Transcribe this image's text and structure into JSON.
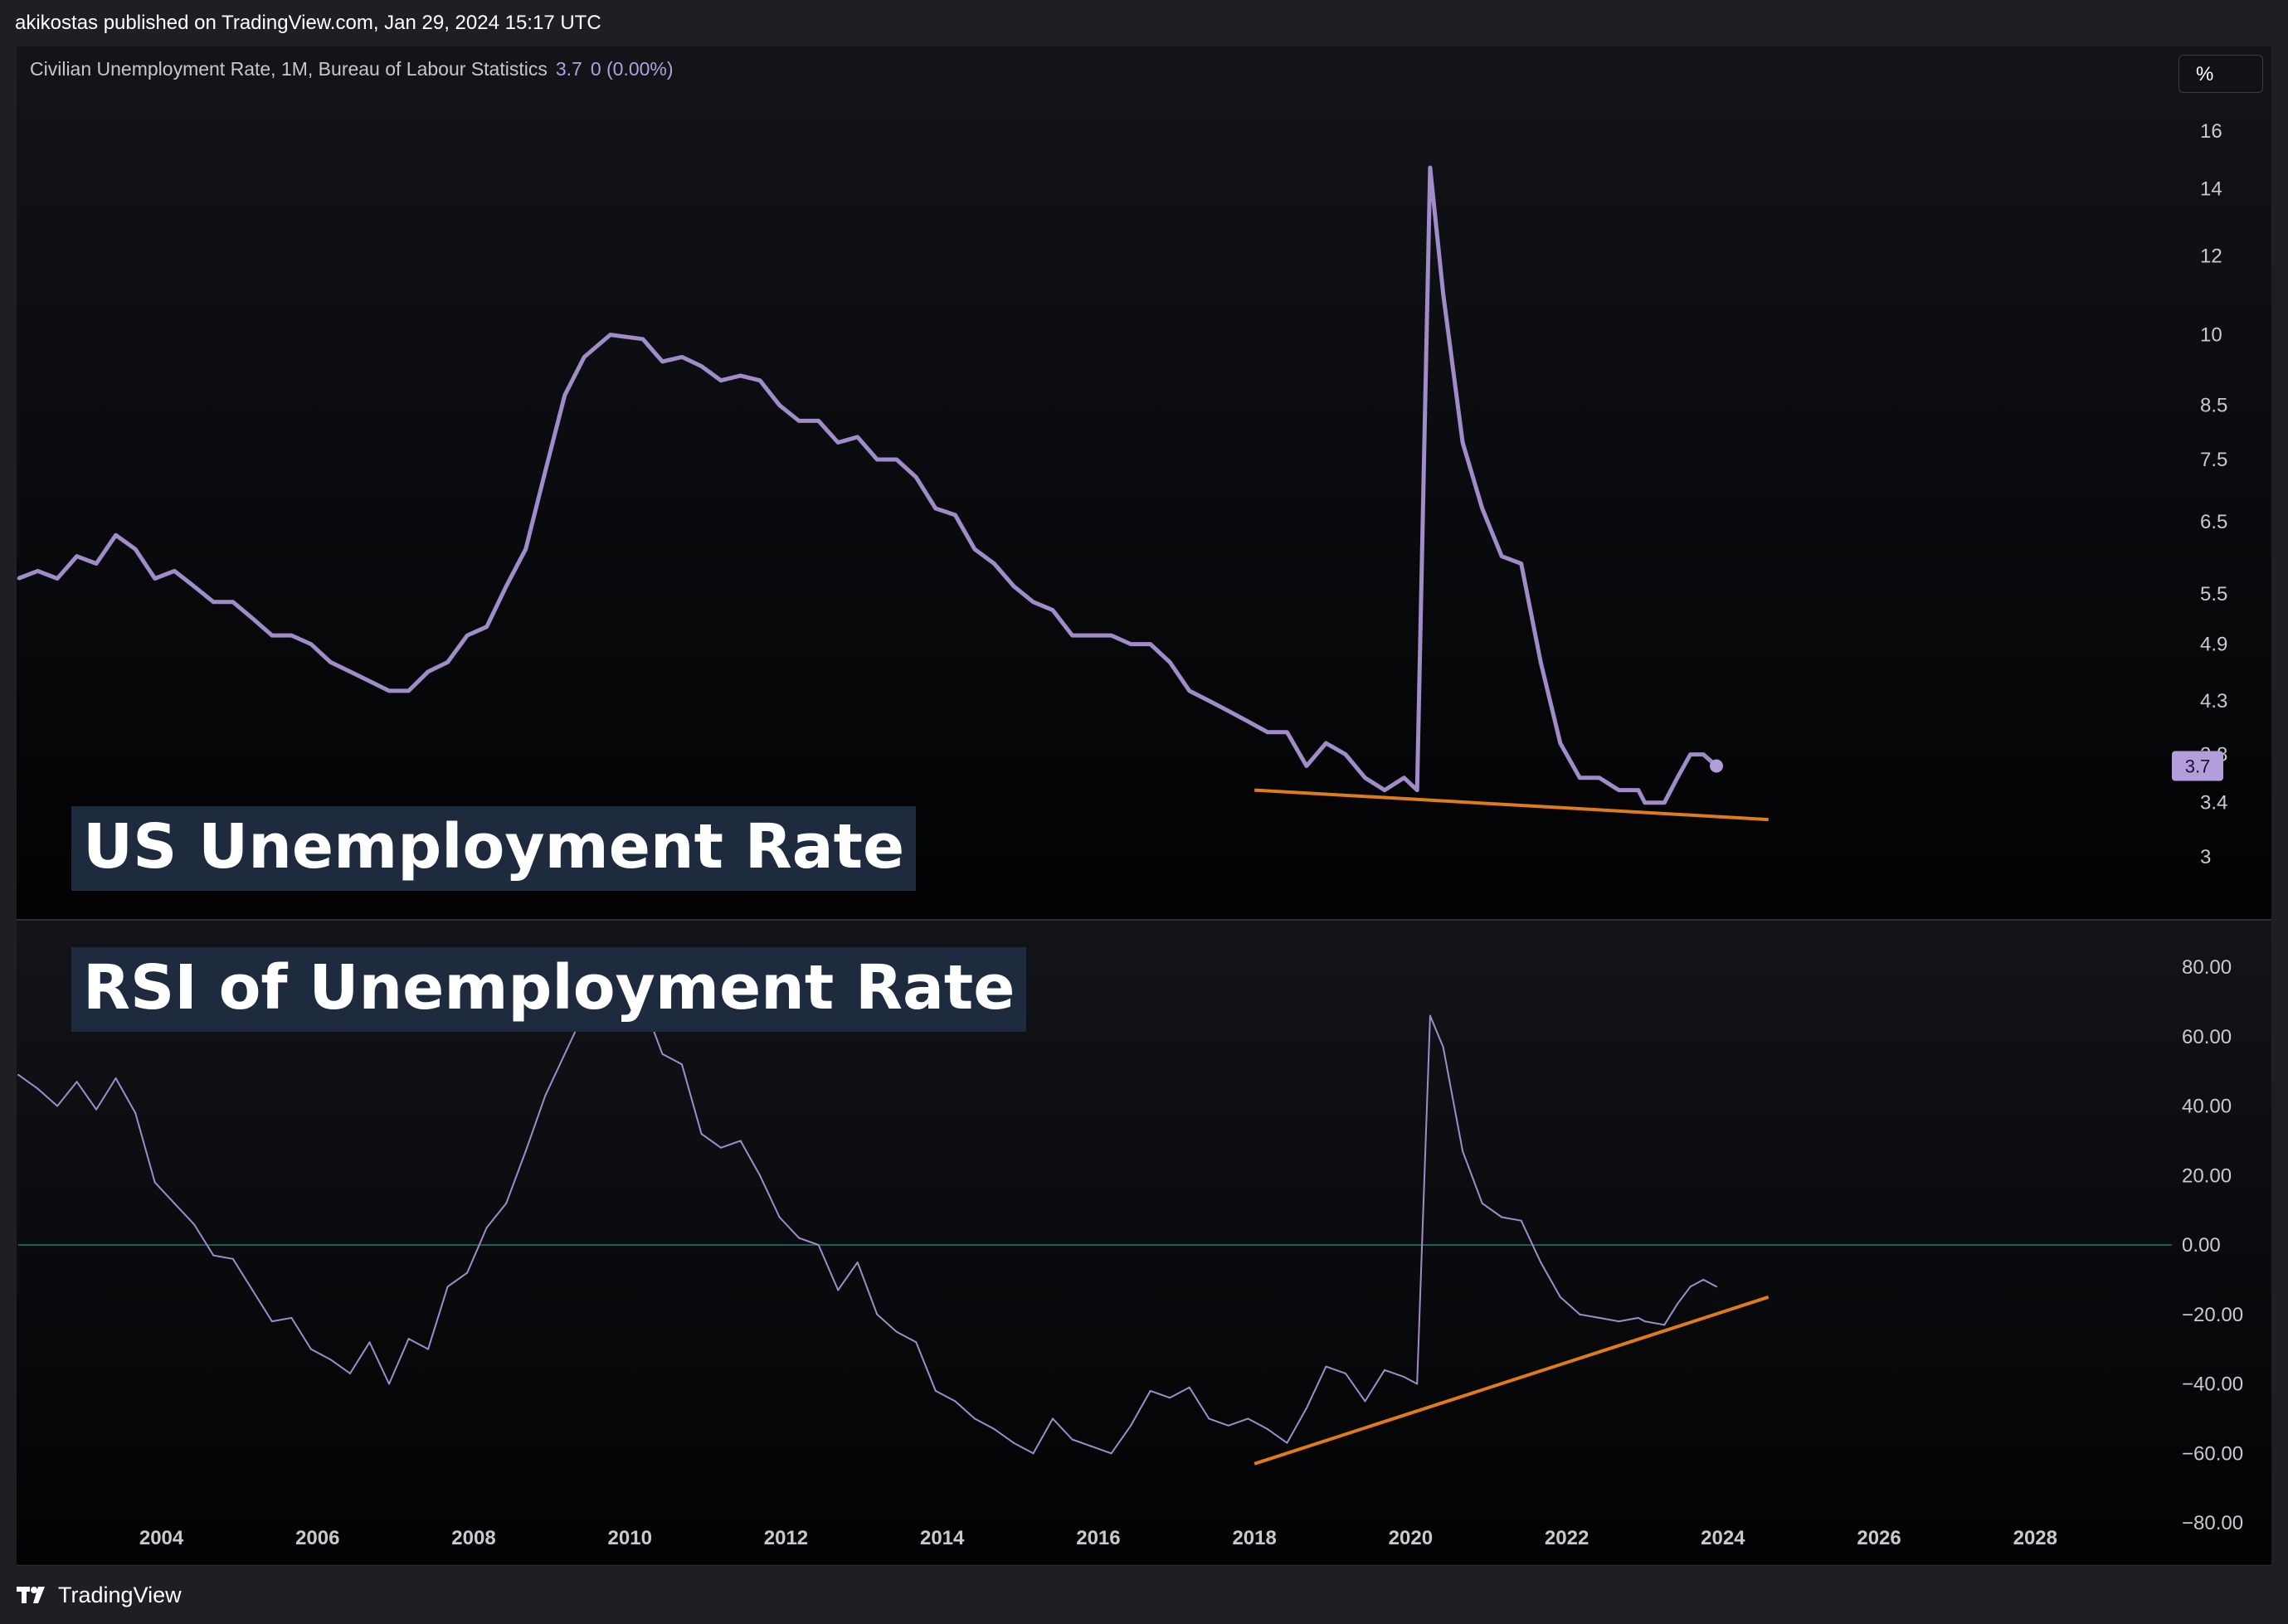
{
  "header": {
    "published_text": "akikostas published on TradingView.com, Jan 29, 2024 15:17 UTC"
  },
  "legend": {
    "series_label": "Civilian Unemployment Rate, 1M, Bureau of Labour Statistics",
    "last_value": "3.7",
    "change": "0 (0.00%)"
  },
  "scale_button": "%",
  "overlay_titles": {
    "top": "US Unemployment Rate",
    "bottom": "RSI of Unemployment Rate"
  },
  "price_badge": "3.7",
  "footer": {
    "brand": "TradingView"
  },
  "colors": {
    "series": "#9f8cc9",
    "badge": "#b39ddb",
    "trendline": "#e07b1a",
    "zero_line": "#1e5e58",
    "background": "#0c0d10"
  },
  "chart_data": [
    {
      "type": "line",
      "title": "US Unemployment Rate",
      "scale": "log",
      "ylim": [
        2.85,
        17.2
      ],
      "y_ticks": [
        "16",
        "14",
        "12",
        "10",
        "8.5",
        "7.5",
        "6.5",
        "5.5",
        "4.9",
        "4.3",
        "3.8",
        "3.4",
        "3"
      ],
      "x_ticks": [
        "2004",
        "2006",
        "2008",
        "2010",
        "2012",
        "2014",
        "2016",
        "2018",
        "2020",
        "2022",
        "2024",
        "2026",
        "2028"
      ],
      "xlim": [
        "2002-03",
        "2029-10"
      ],
      "series": [
        {
          "name": "Civilian Unemployment Rate, 1M, Bureau of Labour Statistics",
          "points": [
            [
              "2002-03",
              5.7
            ],
            [
              "2002-06",
              5.8
            ],
            [
              "2002-09",
              5.7
            ],
            [
              "2002-12",
              6.0
            ],
            [
              "2003-03",
              5.9
            ],
            [
              "2003-06",
              6.3
            ],
            [
              "2003-09",
              6.1
            ],
            [
              "2003-12",
              5.7
            ],
            [
              "2004-03",
              5.8
            ],
            [
              "2004-06",
              5.6
            ],
            [
              "2004-09",
              5.4
            ],
            [
              "2004-12",
              5.4
            ],
            [
              "2005-03",
              5.2
            ],
            [
              "2005-06",
              5.0
            ],
            [
              "2005-09",
              5.0
            ],
            [
              "2005-12",
              4.9
            ],
            [
              "2006-03",
              4.7
            ],
            [
              "2006-06",
              4.6
            ],
            [
              "2006-09",
              4.5
            ],
            [
              "2006-12",
              4.4
            ],
            [
              "2007-03",
              4.4
            ],
            [
              "2007-06",
              4.6
            ],
            [
              "2007-09",
              4.7
            ],
            [
              "2007-12",
              5.0
            ],
            [
              "2008-03",
              5.1
            ],
            [
              "2008-06",
              5.6
            ],
            [
              "2008-09",
              6.1
            ],
            [
              "2008-12",
              7.3
            ],
            [
              "2009-03",
              8.7
            ],
            [
              "2009-06",
              9.5
            ],
            [
              "2009-10",
              10.0
            ],
            [
              "2010-03",
              9.9
            ],
            [
              "2010-06",
              9.4
            ],
            [
              "2010-09",
              9.5
            ],
            [
              "2010-12",
              9.3
            ],
            [
              "2011-03",
              9.0
            ],
            [
              "2011-06",
              9.1
            ],
            [
              "2011-09",
              9.0
            ],
            [
              "2011-12",
              8.5
            ],
            [
              "2012-03",
              8.2
            ],
            [
              "2012-06",
              8.2
            ],
            [
              "2012-09",
              7.8
            ],
            [
              "2012-12",
              7.9
            ],
            [
              "2013-03",
              7.5
            ],
            [
              "2013-06",
              7.5
            ],
            [
              "2013-09",
              7.2
            ],
            [
              "2013-12",
              6.7
            ],
            [
              "2014-03",
              6.6
            ],
            [
              "2014-06",
              6.1
            ],
            [
              "2014-09",
              5.9
            ],
            [
              "2014-12",
              5.6
            ],
            [
              "2015-03",
              5.4
            ],
            [
              "2015-06",
              5.3
            ],
            [
              "2015-09",
              5.0
            ],
            [
              "2015-12",
              5.0
            ],
            [
              "2016-03",
              5.0
            ],
            [
              "2016-06",
              4.9
            ],
            [
              "2016-09",
              4.9
            ],
            [
              "2016-12",
              4.7
            ],
            [
              "2017-03",
              4.4
            ],
            [
              "2017-06",
              4.3
            ],
            [
              "2017-09",
              4.2
            ],
            [
              "2017-12",
              4.1
            ],
            [
              "2018-03",
              4.0
            ],
            [
              "2018-06",
              4.0
            ],
            [
              "2018-09",
              3.7
            ],
            [
              "2018-12",
              3.9
            ],
            [
              "2019-03",
              3.8
            ],
            [
              "2019-06",
              3.6
            ],
            [
              "2019-09",
              3.5
            ],
            [
              "2019-12",
              3.6
            ],
            [
              "2020-02",
              3.5
            ],
            [
              "2020-04",
              14.7
            ],
            [
              "2020-06",
              11.0
            ],
            [
              "2020-09",
              7.8
            ],
            [
              "2020-12",
              6.7
            ],
            [
              "2021-03",
              6.0
            ],
            [
              "2021-06",
              5.9
            ],
            [
              "2021-09",
              4.7
            ],
            [
              "2021-12",
              3.9
            ],
            [
              "2022-03",
              3.6
            ],
            [
              "2022-06",
              3.6
            ],
            [
              "2022-09",
              3.5
            ],
            [
              "2022-12",
              3.5
            ],
            [
              "2023-01",
              3.4
            ],
            [
              "2023-04",
              3.4
            ],
            [
              "2023-06",
              3.6
            ],
            [
              "2023-08",
              3.8
            ],
            [
              "2023-10",
              3.8
            ],
            [
              "2023-12",
              3.7
            ]
          ]
        }
      ],
      "trendline": {
        "from": [
          "2018-01",
          3.5
        ],
        "to": [
          "2024-08",
          3.27
        ]
      },
      "last_value": 3.7
    },
    {
      "type": "line",
      "title": "RSI of Unemployment Rate",
      "ylim": [
        -80,
        80
      ],
      "y_ticks": [
        "80.00",
        "60.00",
        "40.00",
        "20.00",
        "0.00",
        "−20.00",
        "−40.00",
        "−60.00",
        "−80.00"
      ],
      "reference_line": 0,
      "series": [
        {
          "name": "",
          "points": [
            [
              "2002-03",
              49
            ],
            [
              "2002-06",
              45
            ],
            [
              "2002-09",
              40
            ],
            [
              "2002-12",
              47
            ],
            [
              "2003-03",
              39
            ],
            [
              "2003-06",
              48
            ],
            [
              "2003-09",
              38
            ],
            [
              "2003-12",
              18
            ],
            [
              "2004-03",
              12
            ],
            [
              "2004-06",
              6
            ],
            [
              "2004-09",
              -3
            ],
            [
              "2004-12",
              -4
            ],
            [
              "2005-03",
              -13
            ],
            [
              "2005-06",
              -22
            ],
            [
              "2005-09",
              -21
            ],
            [
              "2005-12",
              -30
            ],
            [
              "2006-03",
              -33
            ],
            [
              "2006-06",
              -37
            ],
            [
              "2006-09",
              -28
            ],
            [
              "2006-12",
              -40
            ],
            [
              "2007-03",
              -27
            ],
            [
              "2007-06",
              -30
            ],
            [
              "2007-09",
              -12
            ],
            [
              "2007-12",
              -8
            ],
            [
              "2008-03",
              5
            ],
            [
              "2008-06",
              12
            ],
            [
              "2008-09",
              27
            ],
            [
              "2008-12",
              43
            ],
            [
              "2009-03",
              55
            ],
            [
              "2009-06",
              67
            ],
            [
              "2009-10",
              72
            ],
            [
              "2010-03",
              70
            ],
            [
              "2010-06",
              55
            ],
            [
              "2010-09",
              52
            ],
            [
              "2010-12",
              32
            ],
            [
              "2011-03",
              28
            ],
            [
              "2011-06",
              30
            ],
            [
              "2011-09",
              20
            ],
            [
              "2011-12",
              8
            ],
            [
              "2012-03",
              2
            ],
            [
              "2012-06",
              0
            ],
            [
              "2012-09",
              -13
            ],
            [
              "2012-12",
              -5
            ],
            [
              "2013-03",
              -20
            ],
            [
              "2013-06",
              -25
            ],
            [
              "2013-09",
              -28
            ],
            [
              "2013-12",
              -42
            ],
            [
              "2014-03",
              -45
            ],
            [
              "2014-06",
              -50
            ],
            [
              "2014-09",
              -53
            ],
            [
              "2014-12",
              -57
            ],
            [
              "2015-03",
              -60
            ],
            [
              "2015-06",
              -50
            ],
            [
              "2015-09",
              -56
            ],
            [
              "2015-12",
              -58
            ],
            [
              "2016-03",
              -60
            ],
            [
              "2016-06",
              -52
            ],
            [
              "2016-09",
              -42
            ],
            [
              "2016-12",
              -44
            ],
            [
              "2017-03",
              -41
            ],
            [
              "2017-06",
              -50
            ],
            [
              "2017-09",
              -52
            ],
            [
              "2017-12",
              -50
            ],
            [
              "2018-03",
              -53
            ],
            [
              "2018-06",
              -57
            ],
            [
              "2018-09",
              -47
            ],
            [
              "2018-12",
              -35
            ],
            [
              "2019-03",
              -37
            ],
            [
              "2019-06",
              -45
            ],
            [
              "2019-09",
              -36
            ],
            [
              "2019-12",
              -38
            ],
            [
              "2020-02",
              -40
            ],
            [
              "2020-04",
              66
            ],
            [
              "2020-06",
              57
            ],
            [
              "2020-09",
              27
            ],
            [
              "2020-12",
              12
            ],
            [
              "2021-03",
              8
            ],
            [
              "2021-06",
              7
            ],
            [
              "2021-09",
              -5
            ],
            [
              "2021-12",
              -15
            ],
            [
              "2022-03",
              -20
            ],
            [
              "2022-06",
              -21
            ],
            [
              "2022-09",
              -22
            ],
            [
              "2022-12",
              -21
            ],
            [
              "2023-01",
              -22
            ],
            [
              "2023-04",
              -23
            ],
            [
              "2023-06",
              -17
            ],
            [
              "2023-08",
              -12
            ],
            [
              "2023-10",
              -10
            ],
            [
              "2023-12",
              -12
            ]
          ]
        }
      ],
      "trendline": {
        "from": [
          "2018-01",
          -63
        ],
        "to": [
          "2024-08",
          -15
        ]
      }
    }
  ]
}
